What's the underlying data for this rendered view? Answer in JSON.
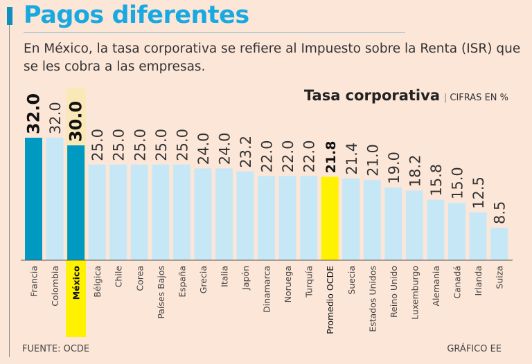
{
  "header": {
    "title": "Pagos diferentes",
    "subtitle": "En México, la tasa corporativa se refiere al Impuesto sobre la Renta (ISR) que se les cobra a las empresas."
  },
  "footer": {
    "source": "FUENTE: OCDE",
    "credit": "GRÁFICO EE"
  },
  "colors": {
    "background": "#fce6d8",
    "highlight": "#0099c2",
    "default": "#c6e8f6",
    "average": "#fff200",
    "title": "#19a9e1"
  },
  "chart_data": {
    "type": "bar",
    "title": "Tasa corporativa",
    "unit_label": "CIFRAS EN %",
    "ylim": [
      0,
      32
    ],
    "categories": [
      "Francia",
      "Colombia",
      "México",
      "Bélgica",
      "Chile",
      "Corea",
      "Países Bajos",
      "España",
      "Grecia",
      "Italia",
      "Japón",
      "Dinamarca",
      "Noruega",
      "Turquía",
      "Promedio OCDE",
      "Suecia",
      "Estados Unidos",
      "Reino Unido",
      "Luxemburgo",
      "Alemania",
      "Canadá",
      "Irlanda",
      "Suiza"
    ],
    "values": [
      32.0,
      32.0,
      30.0,
      25.0,
      25.0,
      25.0,
      25.0,
      25.0,
      24.0,
      24.0,
      23.2,
      22.0,
      22.0,
      22.0,
      21.8,
      21.4,
      21.0,
      19.0,
      18.2,
      15.8,
      15.0,
      12.5,
      8.5
    ],
    "labels": [
      "32.0",
      "32.0",
      "30.0",
      "25.0",
      "25.0",
      "25.0",
      "25.0",
      "25.0",
      "24.0",
      "24.0",
      "23.2",
      "22.0",
      "22.0",
      "22.0",
      "21.8",
      "21.4",
      "21.0",
      "19.0",
      "18.2",
      "15.8",
      "15.0",
      "12.5",
      "8.5"
    ],
    "highlighted": [
      "Francia",
      "México"
    ],
    "average": "Promedio OCDE",
    "emphasis_column": "México"
  }
}
